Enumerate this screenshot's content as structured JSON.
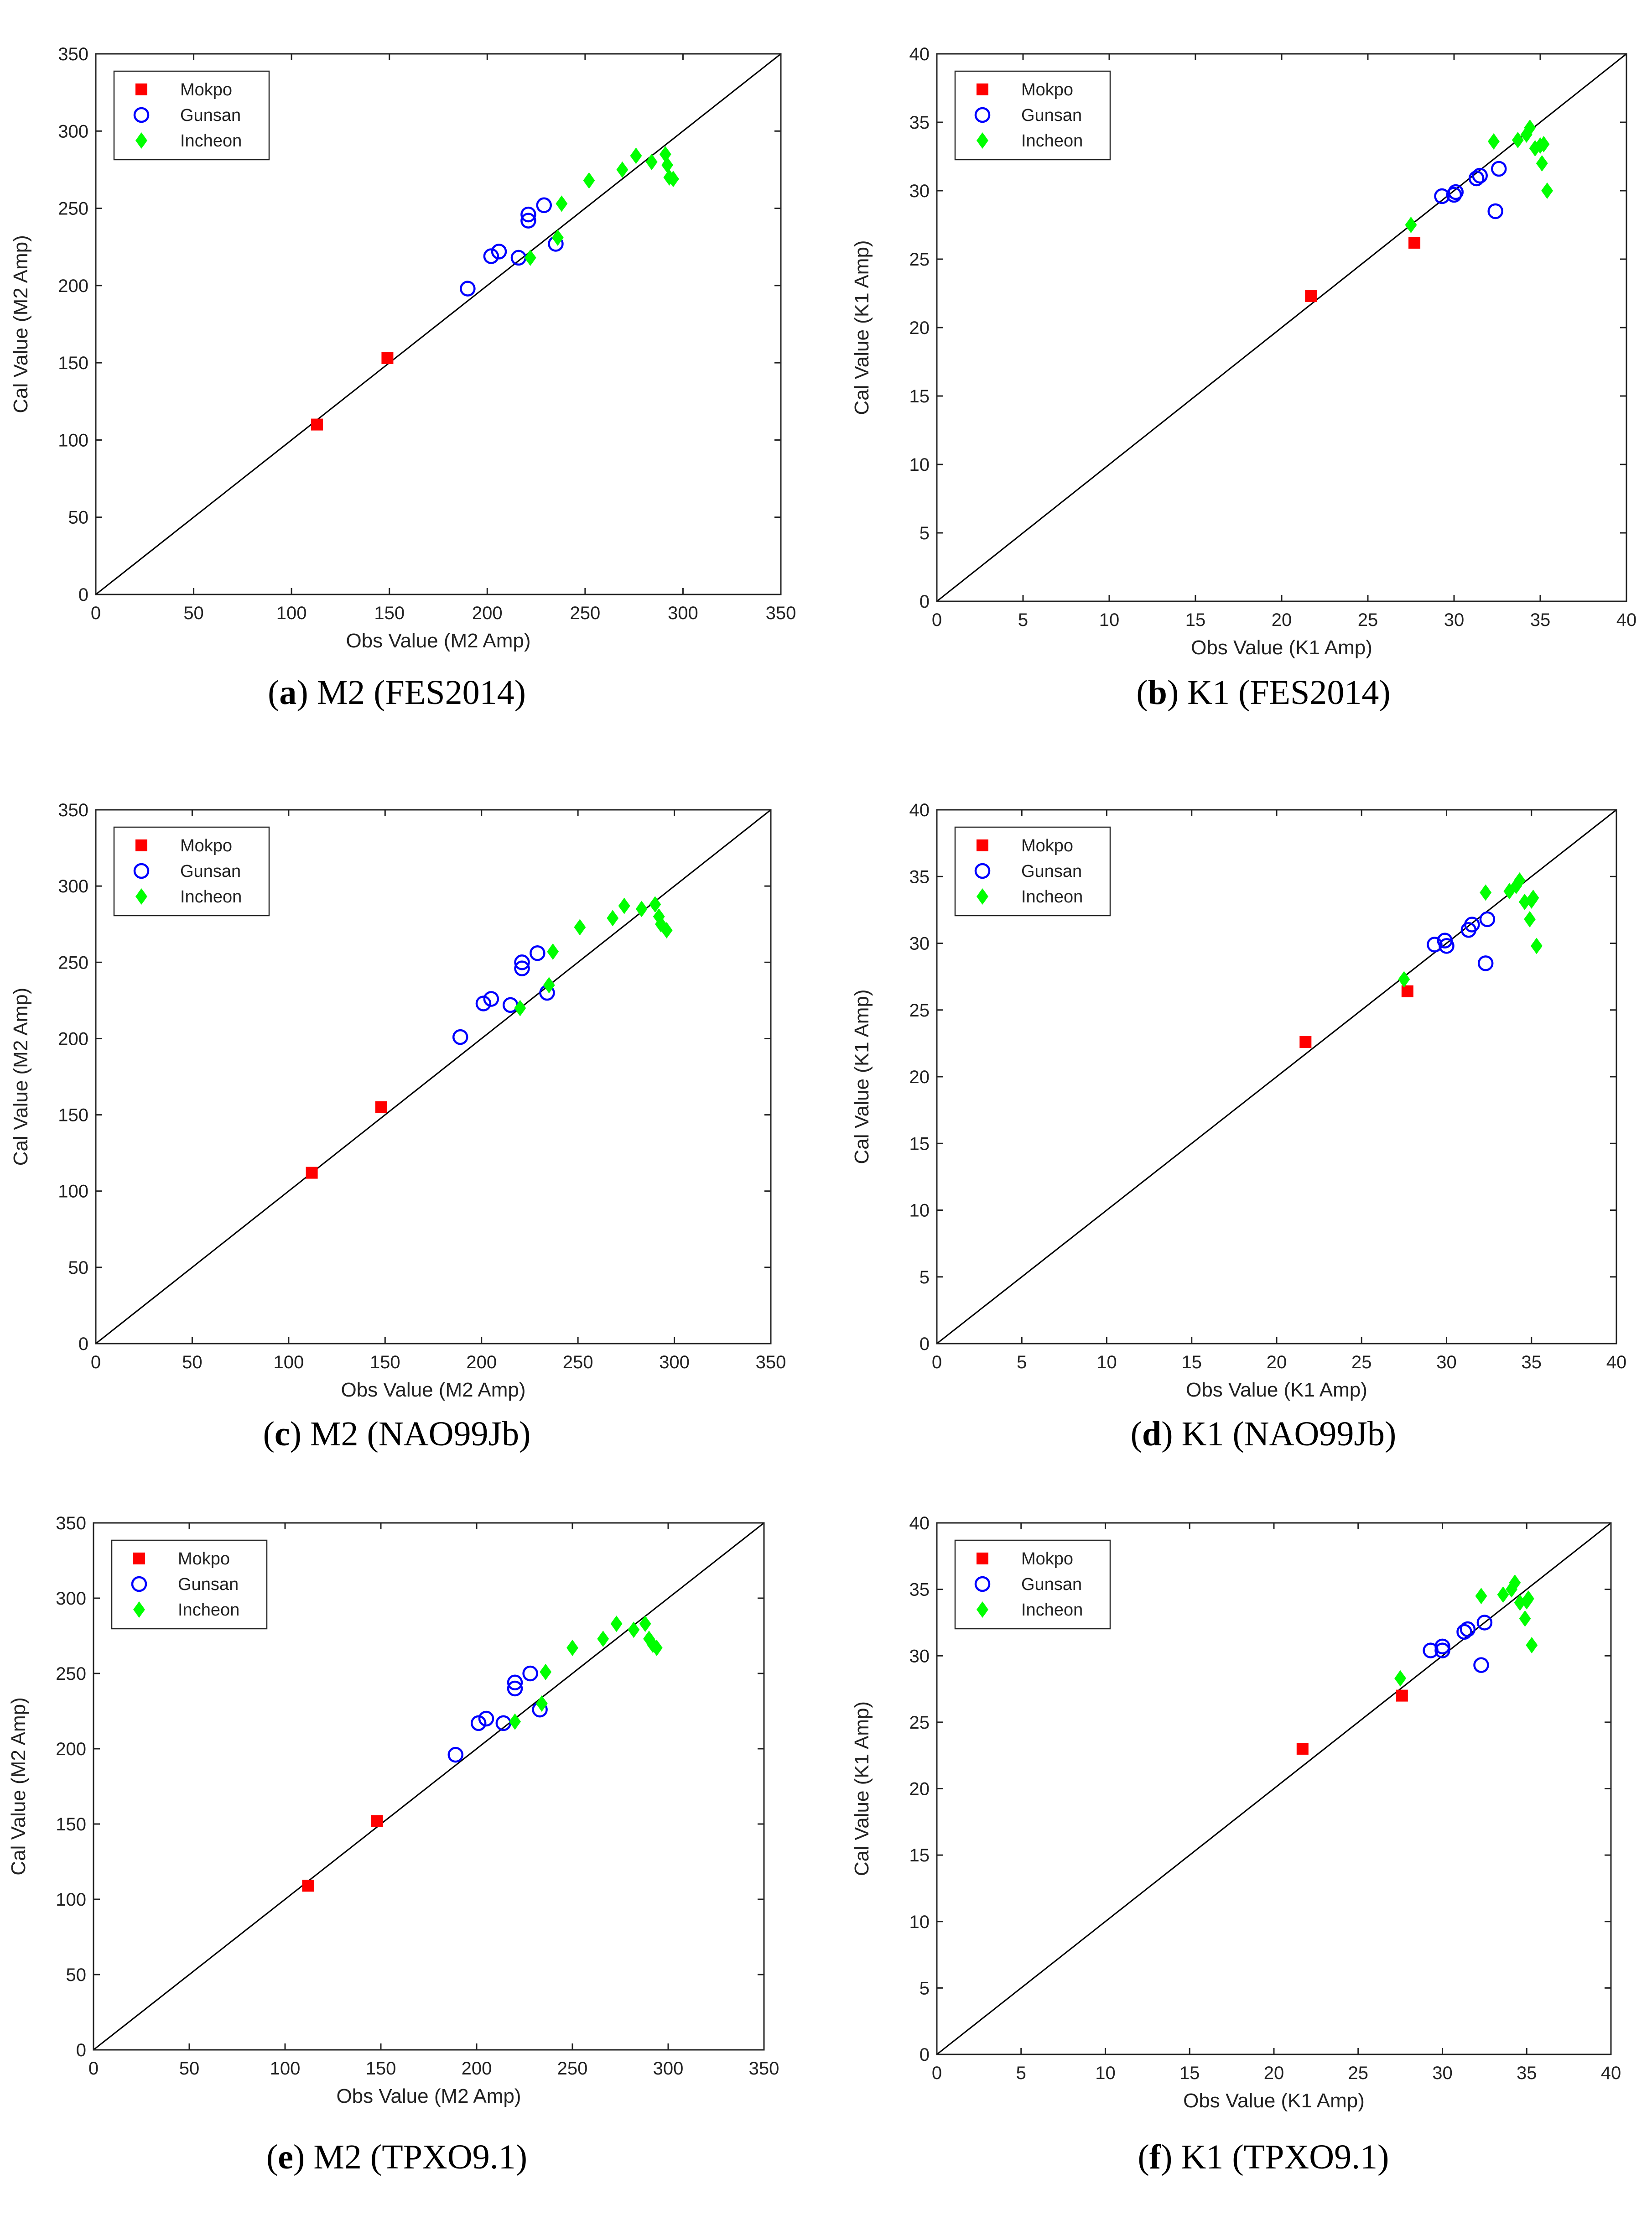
{
  "colors": {
    "mokpo": "#ff0000",
    "gunsan": "#0000ff",
    "incheon": "#00ff00"
  },
  "chart_data": [
    {
      "id": "a",
      "type": "scatter",
      "caption_letter": "a",
      "caption_text": "M2 (FES2014)",
      "xlabel": "Obs Value (M2 Amp)",
      "ylabel": "Cal Value (M2 Amp)",
      "xlim": [
        0,
        350
      ],
      "ylim": [
        0,
        350
      ],
      "xticks": [
        "0",
        "50",
        "100",
        "150",
        "200",
        "250",
        "300",
        "350"
      ],
      "yticks": [
        "0",
        "50",
        "100",
        "150",
        "200",
        "250",
        "300",
        "350"
      ],
      "legend_position": "top-left",
      "series": [
        {
          "name": "Mokpo",
          "marker": "square",
          "points": [
            [
              113,
              110
            ],
            [
              149,
              153
            ]
          ]
        },
        {
          "name": "Gunsan",
          "marker": "circle",
          "points": [
            [
              190,
              198
            ],
            [
              202,
              219
            ],
            [
              206,
              222
            ],
            [
              216,
              218
            ],
            [
              221,
              242
            ],
            [
              221,
              246
            ],
            [
              229,
              252
            ],
            [
              235,
              227
            ]
          ]
        },
        {
          "name": "Incheon",
          "marker": "diamond",
          "points": [
            [
              222,
              218
            ],
            [
              236,
              231
            ],
            [
              238,
              253
            ],
            [
              252,
              268
            ],
            [
              269,
              275
            ],
            [
              276,
              284
            ],
            [
              284,
              280
            ],
            [
              291,
              285
            ],
            [
              292,
              278
            ],
            [
              293,
              270
            ],
            [
              295,
              269
            ]
          ]
        }
      ]
    },
    {
      "id": "b",
      "type": "scatter",
      "caption_letter": "b",
      "caption_text": "K1 (FES2014)",
      "xlabel": "Obs Value (K1 Amp)",
      "ylabel": "Cal Value (K1 Amp)",
      "xlim": [
        0,
        40
      ],
      "ylim": [
        0,
        40
      ],
      "xticks": [
        "0",
        "5",
        "10",
        "15",
        "20",
        "25",
        "30",
        "35",
        "40"
      ],
      "yticks": [
        "0",
        "5",
        "10",
        "15",
        "20",
        "25",
        "30",
        "35",
        "40"
      ],
      "legend_position": "top-left",
      "series": [
        {
          "name": "Mokpo",
          "marker": "square",
          "points": [
            [
              21.7,
              22.3
            ],
            [
              27.7,
              26.2
            ]
          ]
        },
        {
          "name": "Gunsan",
          "marker": "circle",
          "points": [
            [
              29.3,
              29.6
            ],
            [
              30.0,
              29.7
            ],
            [
              30.1,
              29.9
            ],
            [
              31.3,
              30.9
            ],
            [
              31.5,
              31.1
            ],
            [
              32.4,
              28.5
            ],
            [
              32.6,
              31.6
            ]
          ]
        },
        {
          "name": "Incheon",
          "marker": "diamond",
          "points": [
            [
              27.5,
              27.5
            ],
            [
              32.3,
              33.6
            ],
            [
              33.7,
              33.7
            ],
            [
              34.2,
              34.1
            ],
            [
              34.4,
              34.6
            ],
            [
              34.7,
              33.1
            ],
            [
              35.0,
              33.3
            ],
            [
              35.1,
              32.0
            ],
            [
              35.2,
              33.4
            ],
            [
              35.4,
              30.0
            ]
          ]
        }
      ]
    },
    {
      "id": "c",
      "type": "scatter",
      "caption_letter": "c",
      "caption_text": "M2 (NAO99Jb)",
      "xlabel": "Obs Value (M2 Amp)",
      "ylabel": "Cal Value (M2 Amp)",
      "xlim": [
        0,
        350
      ],
      "ylim": [
        0,
        350
      ],
      "xticks": [
        "0",
        "50",
        "100",
        "150",
        "200",
        "250",
        "300",
        "350"
      ],
      "yticks": [
        "0",
        "50",
        "100",
        "150",
        "200",
        "250",
        "300",
        "350"
      ],
      "legend_position": "top-left",
      "series": [
        {
          "name": "Mokpo",
          "marker": "square",
          "points": [
            [
              112,
              112
            ],
            [
              148,
              155
            ]
          ]
        },
        {
          "name": "Gunsan",
          "marker": "circle",
          "points": [
            [
              189,
              201
            ],
            [
              201,
              223
            ],
            [
              205,
              226
            ],
            [
              215,
              222
            ],
            [
              221,
              246
            ],
            [
              221,
              250
            ],
            [
              229,
              256
            ],
            [
              234,
              230
            ]
          ]
        },
        {
          "name": "Incheon",
          "marker": "diamond",
          "points": [
            [
              220,
              220
            ],
            [
              235,
              235
            ],
            [
              237,
              257
            ],
            [
              251,
              273
            ],
            [
              268,
              279
            ],
            [
              274,
              287
            ],
            [
              283,
              285
            ],
            [
              290,
              288
            ],
            [
              292,
              280
            ],
            [
              293,
              275
            ],
            [
              296,
              271
            ]
          ]
        }
      ]
    },
    {
      "id": "d",
      "type": "scatter",
      "caption_letter": "d",
      "caption_text": "K1 (NAO99Jb)",
      "xlabel": "Obs Value (K1 Amp)",
      "ylabel": "Cal Value (K1 Amp)",
      "xlim": [
        0,
        40
      ],
      "ylim": [
        0,
        40
      ],
      "xticks": [
        "0",
        "5",
        "10",
        "15",
        "20",
        "25",
        "30",
        "35",
        "40"
      ],
      "yticks": [
        "0",
        "5",
        "10",
        "15",
        "20",
        "25",
        "30",
        "35",
        "40"
      ],
      "legend_position": "top-left",
      "series": [
        {
          "name": "Mokpo",
          "marker": "square",
          "points": [
            [
              21.7,
              22.6
            ],
            [
              27.7,
              26.4
            ]
          ]
        },
        {
          "name": "Gunsan",
          "marker": "circle",
          "points": [
            [
              29.3,
              29.9
            ],
            [
              29.9,
              30.2
            ],
            [
              30.0,
              29.8
            ],
            [
              31.3,
              31.0
            ],
            [
              31.5,
              31.4
            ],
            [
              32.3,
              28.5
            ],
            [
              32.4,
              31.8
            ]
          ]
        },
        {
          "name": "Incheon",
          "marker": "diamond",
          "points": [
            [
              27.5,
              27.3
            ],
            [
              32.3,
              33.8
            ],
            [
              33.7,
              33.9
            ],
            [
              34.1,
              34.3
            ],
            [
              34.3,
              34.7
            ],
            [
              34.6,
              33.1
            ],
            [
              34.9,
              31.8
            ],
            [
              35.0,
              33.2
            ],
            [
              35.1,
              33.4
            ],
            [
              35.3,
              29.8
            ]
          ]
        }
      ]
    },
    {
      "id": "e",
      "type": "scatter",
      "caption_letter": "e",
      "caption_text": "M2 (TPXO9.1)",
      "xlabel": "Obs Value (M2 Amp)",
      "ylabel": "Cal Value (M2 Amp)",
      "xlim": [
        0,
        350
      ],
      "ylim": [
        0,
        350
      ],
      "xticks": [
        "0",
        "50",
        "100",
        "150",
        "200",
        "250",
        "300",
        "350"
      ],
      "yticks": [
        "0",
        "50",
        "100",
        "150",
        "200",
        "250",
        "300",
        "350"
      ],
      "legend_position": "top-left",
      "series": [
        {
          "name": "Mokpo",
          "marker": "square",
          "points": [
            [
              112,
              109
            ],
            [
              148,
              152
            ]
          ]
        },
        {
          "name": "Gunsan",
          "marker": "circle",
          "points": [
            [
              189,
              196
            ],
            [
              201,
              217
            ],
            [
              205,
              220
            ],
            [
              214,
              217
            ],
            [
              220,
              240
            ],
            [
              220,
              244
            ],
            [
              228,
              250
            ],
            [
              233,
              226
            ]
          ]
        },
        {
          "name": "Incheon",
          "marker": "diamond",
          "points": [
            [
              220,
              218
            ],
            [
              234,
              230
            ],
            [
              236,
              251
            ],
            [
              250,
              267
            ],
            [
              266,
              273
            ],
            [
              273,
              283
            ],
            [
              282,
              279
            ],
            [
              288,
              283
            ],
            [
              290,
              273
            ],
            [
              292,
              269
            ],
            [
              294,
              267
            ]
          ]
        }
      ]
    },
    {
      "id": "f",
      "type": "scatter",
      "caption_letter": "f",
      "caption_text": "K1 (TPXO9.1)",
      "xlabel": "Obs Value (K1 Amp)",
      "ylabel": "Cal Value (K1 Amp)",
      "xlim": [
        0,
        40
      ],
      "ylim": [
        0,
        40
      ],
      "xticks": [
        "0",
        "5",
        "10",
        "15",
        "20",
        "25",
        "30",
        "35",
        "40"
      ],
      "yticks": [
        "0",
        "5",
        "10",
        "15",
        "20",
        "25",
        "30",
        "35",
        "40"
      ],
      "legend_position": "top-left",
      "series": [
        {
          "name": "Mokpo",
          "marker": "square",
          "points": [
            [
              21.7,
              23.0
            ],
            [
              27.6,
              27.0
            ]
          ]
        },
        {
          "name": "Gunsan",
          "marker": "circle",
          "points": [
            [
              29.3,
              30.4
            ],
            [
              30.0,
              30.4
            ],
            [
              30.0,
              30.7
            ],
            [
              31.3,
              31.8
            ],
            [
              31.5,
              32.0
            ],
            [
              32.3,
              29.3
            ],
            [
              32.5,
              32.5
            ]
          ]
        },
        {
          "name": "Incheon",
          "marker": "diamond",
          "points": [
            [
              27.5,
              28.3
            ],
            [
              32.3,
              34.5
            ],
            [
              33.6,
              34.6
            ],
            [
              34.1,
              35.0
            ],
            [
              34.3,
              35.5
            ],
            [
              34.6,
              34.0
            ],
            [
              34.9,
              32.8
            ],
            [
              35.0,
              34.1
            ],
            [
              35.1,
              34.3
            ],
            [
              35.3,
              30.8
            ]
          ]
        }
      ]
    }
  ]
}
